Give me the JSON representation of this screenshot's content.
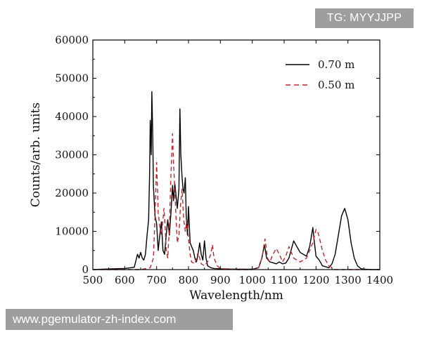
{
  "watermarks": {
    "top_right": "TG: MYYJJPP",
    "bottom_left": "www.pgemulator-zh-index.com"
  },
  "chart_data": {
    "type": "line",
    "title": "",
    "xlabel": "Wavelength/nm",
    "ylabel": "Counts/arb. units",
    "xlim": [
      500,
      1400
    ],
    "ylim": [
      0,
      60000
    ],
    "xticks": [
      500,
      600,
      700,
      800,
      900,
      1000,
      1100,
      1200,
      1300,
      1400
    ],
    "yticks": [
      0,
      10000,
      20000,
      30000,
      40000,
      50000,
      60000
    ],
    "grid": false,
    "legend_position": "top-right",
    "series": [
      {
        "name": "0.70 m",
        "color": "#000000",
        "dash": "solid",
        "points": [
          [
            500,
            0
          ],
          [
            560,
            200
          ],
          [
            600,
            300
          ],
          [
            630,
            600
          ],
          [
            640,
            4000
          ],
          [
            645,
            3000
          ],
          [
            650,
            4500
          ],
          [
            655,
            3000
          ],
          [
            660,
            2500
          ],
          [
            665,
            4000
          ],
          [
            670,
            9000
          ],
          [
            675,
            13000
          ],
          [
            678,
            25000
          ],
          [
            680,
            39000
          ],
          [
            683,
            30000
          ],
          [
            685,
            46500
          ],
          [
            688,
            35000
          ],
          [
            690,
            22000
          ],
          [
            695,
            14000
          ],
          [
            700,
            12000
          ],
          [
            705,
            5000
          ],
          [
            710,
            9000
          ],
          [
            715,
            12500
          ],
          [
            720,
            5000
          ],
          [
            725,
            4000
          ],
          [
            730,
            9000
          ],
          [
            735,
            13000
          ],
          [
            740,
            9000
          ],
          [
            745,
            15000
          ],
          [
            750,
            22000
          ],
          [
            753,
            18000
          ],
          [
            757,
            22500
          ],
          [
            760,
            20000
          ],
          [
            765,
            16000
          ],
          [
            770,
            21000
          ],
          [
            773,
            42000
          ],
          [
            776,
            30000
          ],
          [
            780,
            24000
          ],
          [
            783,
            21000
          ],
          [
            786,
            20000
          ],
          [
            790,
            24000
          ],
          [
            793,
            14000
          ],
          [
            797,
            9000
          ],
          [
            800,
            16500
          ],
          [
            805,
            7000
          ],
          [
            810,
            6000
          ],
          [
            815,
            5000
          ],
          [
            820,
            3000
          ],
          [
            825,
            2000
          ],
          [
            830,
            4000
          ],
          [
            835,
            7000
          ],
          [
            840,
            4000
          ],
          [
            845,
            2500
          ],
          [
            850,
            7500
          ],
          [
            855,
            3000
          ],
          [
            860,
            1000
          ],
          [
            870,
            500
          ],
          [
            880,
            300
          ],
          [
            900,
            200
          ],
          [
            950,
            100
          ],
          [
            1000,
            100
          ],
          [
            1020,
            500
          ],
          [
            1030,
            3000
          ],
          [
            1038,
            6500
          ],
          [
            1045,
            3000
          ],
          [
            1055,
            2000
          ],
          [
            1065,
            1800
          ],
          [
            1075,
            1500
          ],
          [
            1085,
            2000
          ],
          [
            1095,
            1500
          ],
          [
            1105,
            1700
          ],
          [
            1115,
            3000
          ],
          [
            1125,
            6000
          ],
          [
            1130,
            7500
          ],
          [
            1140,
            6000
          ],
          [
            1150,
            4500
          ],
          [
            1160,
            4000
          ],
          [
            1170,
            3500
          ],
          [
            1180,
            6000
          ],
          [
            1190,
            11000
          ],
          [
            1195,
            7000
          ],
          [
            1200,
            3500
          ],
          [
            1210,
            2500
          ],
          [
            1220,
            1000
          ],
          [
            1240,
            500
          ],
          [
            1250,
            1500
          ],
          [
            1260,
            4000
          ],
          [
            1270,
            9000
          ],
          [
            1280,
            14000
          ],
          [
            1290,
            16000
          ],
          [
            1300,
            13000
          ],
          [
            1310,
            7000
          ],
          [
            1320,
            3000
          ],
          [
            1330,
            1000
          ],
          [
            1340,
            300
          ],
          [
            1350,
            100
          ],
          [
            1380,
            0
          ],
          [
            1400,
            0
          ]
        ]
      },
      {
        "name": "0.50 m",
        "color": "#c0282d",
        "dash": "dashed",
        "points": [
          [
            500,
            0
          ],
          [
            550,
            0
          ],
          [
            600,
            0
          ],
          [
            650,
            0
          ],
          [
            680,
            500
          ],
          [
            690,
            3000
          ],
          [
            695,
            14000
          ],
          [
            700,
            28000
          ],
          [
            705,
            15000
          ],
          [
            710,
            11000
          ],
          [
            715,
            9000
          ],
          [
            720,
            13000
          ],
          [
            723,
            16000
          ],
          [
            727,
            11000
          ],
          [
            730,
            5000
          ],
          [
            735,
            3000
          ],
          [
            740,
            11000
          ],
          [
            745,
            25000
          ],
          [
            750,
            35500
          ],
          [
            753,
            28000
          ],
          [
            757,
            21000
          ],
          [
            760,
            15000
          ],
          [
            765,
            7000
          ],
          [
            770,
            9000
          ],
          [
            775,
            17000
          ],
          [
            780,
            21000
          ],
          [
            785,
            13000
          ],
          [
            790,
            10000
          ],
          [
            795,
            13000
          ],
          [
            800,
            8000
          ],
          [
            805,
            4000
          ],
          [
            810,
            2000
          ],
          [
            820,
            1500
          ],
          [
            830,
            4500
          ],
          [
            835,
            3000
          ],
          [
            840,
            1500
          ],
          [
            850,
            1000
          ],
          [
            860,
            2000
          ],
          [
            870,
            4000
          ],
          [
            875,
            6500
          ],
          [
            880,
            3000
          ],
          [
            890,
            1000
          ],
          [
            900,
            300
          ],
          [
            950,
            0
          ],
          [
            1000,
            0
          ],
          [
            1020,
            500
          ],
          [
            1030,
            3000
          ],
          [
            1040,
            8000
          ],
          [
            1048,
            3000
          ],
          [
            1055,
            2000
          ],
          [
            1065,
            4000
          ],
          [
            1075,
            5500
          ],
          [
            1082,
            4500
          ],
          [
            1090,
            3000
          ],
          [
            1095,
            2000
          ],
          [
            1105,
            3500
          ],
          [
            1115,
            6000
          ],
          [
            1120,
            5000
          ],
          [
            1130,
            3000
          ],
          [
            1140,
            2500
          ],
          [
            1150,
            2000
          ],
          [
            1160,
            2500
          ],
          [
            1170,
            3000
          ],
          [
            1180,
            5000
          ],
          [
            1190,
            7000
          ],
          [
            1200,
            10500
          ],
          [
            1205,
            10000
          ],
          [
            1210,
            8500
          ],
          [
            1220,
            5000
          ],
          [
            1230,
            2500
          ],
          [
            1240,
            1000
          ],
          [
            1250,
            500
          ],
          [
            1260,
            0
          ],
          [
            1300,
            0
          ],
          [
            1400,
            0
          ]
        ]
      }
    ]
  }
}
